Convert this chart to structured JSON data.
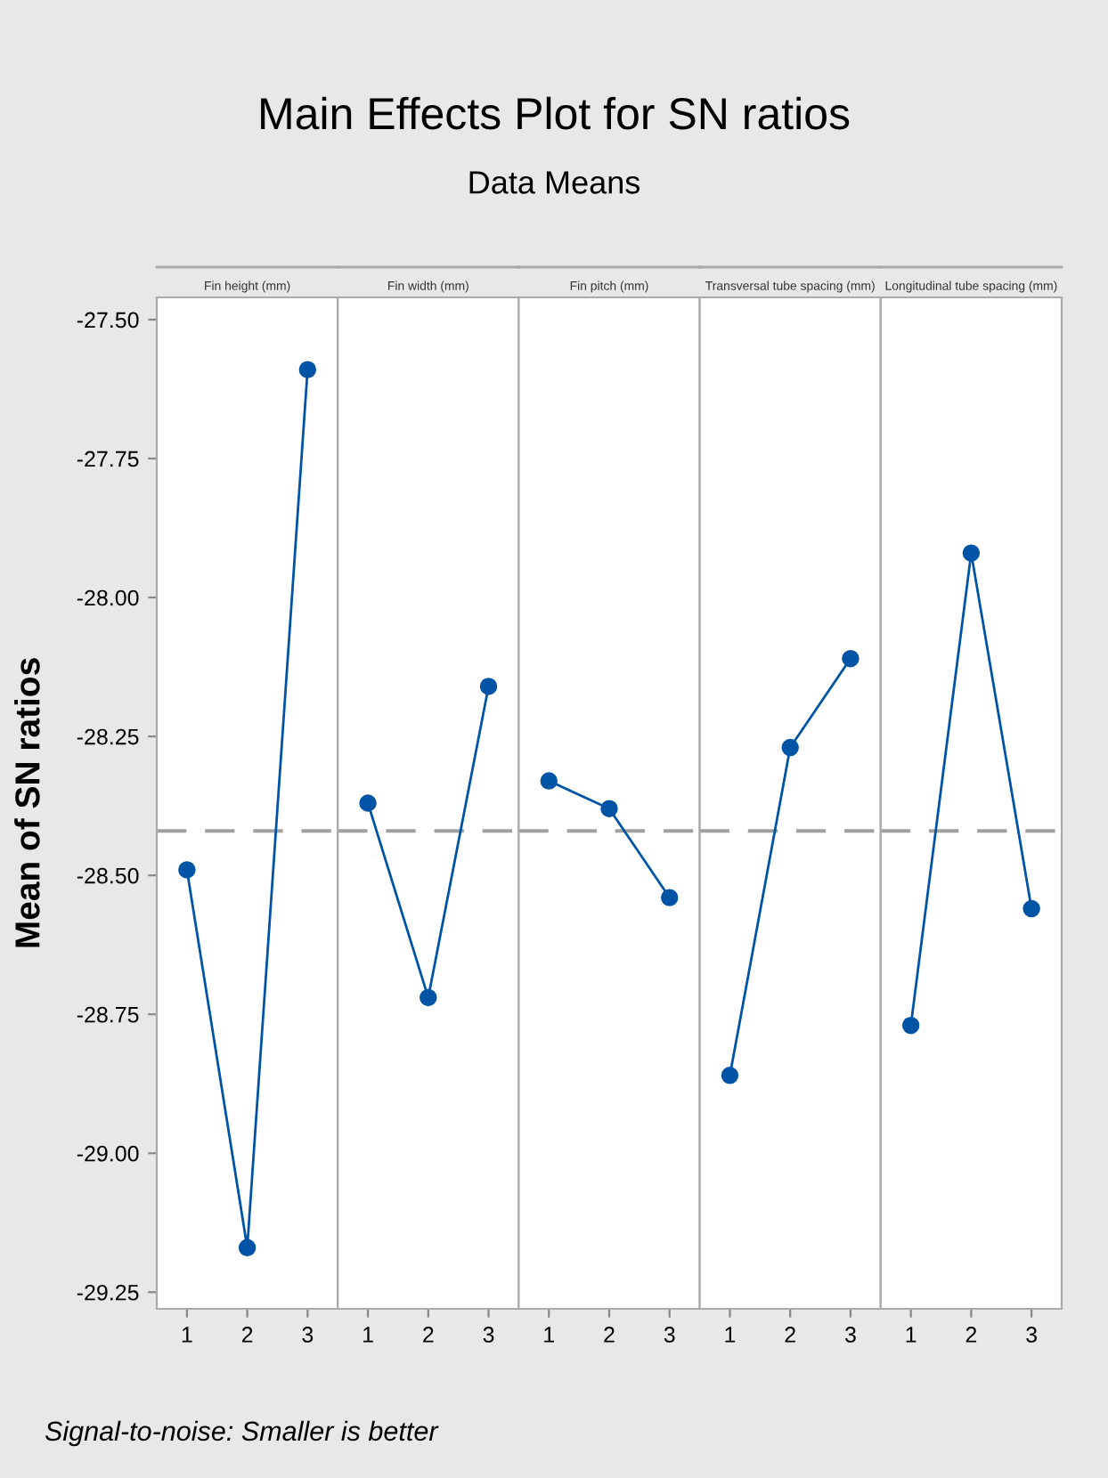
{
  "chart_data": [
    {
      "type": "line",
      "title": "Fin height (mm)",
      "ylabel": "Mean of SN ratios",
      "categories": [
        "1",
        "2",
        "3"
      ],
      "series": [
        {
          "color": "#0054a6",
          "values": [
            -28.49,
            -29.17,
            -27.59
          ]
        }
      ],
      "ylim": [
        -29.28,
        -27.46
      ],
      "yticks": [
        {
          "value": -27.5,
          "label": "-27.50"
        },
        {
          "value": -27.75,
          "label": "-27.75"
        },
        {
          "value": -28.0,
          "label": "-28.00"
        },
        {
          "value": -28.25,
          "label": "-28.25"
        },
        {
          "value": -28.5,
          "label": "-28.50"
        },
        {
          "value": -28.75,
          "label": "-28.75"
        },
        {
          "value": -29.0,
          "label": "-29.00"
        },
        {
          "value": -29.25,
          "label": "-29.25"
        }
      ],
      "ref_lines": [
        {
          "axis": "y",
          "value": -28.42,
          "color": "#a0a0a0",
          "line_style": "dashed"
        }
      ],
      "marker": "circle",
      "grid": false,
      "legend": false,
      "annotations": [
        "Signal-to-noise: Smaller is better"
      ]
    },
    {
      "type": "line",
      "title": "Fin width (mm)",
      "categories": [
        "1",
        "2",
        "3"
      ],
      "series": [
        {
          "color": "#0054a6",
          "values": [
            -28.37,
            -28.72,
            -28.16
          ]
        }
      ],
      "ylim": [
        -29.28,
        -27.46
      ],
      "tick_labels": "x",
      "ref_lines": [
        {
          "axis": "y",
          "value": -28.42,
          "color": "#a0a0a0",
          "line_style": "dashed"
        }
      ],
      "marker": "circle",
      "grid": false,
      "legend": false
    },
    {
      "type": "line",
      "title": "Main Effects Plot for SN ratios",
      "subtitle": "Data Means",
      "annotations": [
        "Fin pitch (mm)"
      ],
      "categories": [
        "1",
        "2",
        "3"
      ],
      "series": [
        {
          "color": "#0054a6",
          "values": [
            -28.33,
            -28.38,
            -28.54
          ]
        }
      ],
      "ylim": [
        -29.28,
        -27.46
      ],
      "tick_labels": "x",
      "ref_lines": [
        {
          "axis": "y",
          "value": -28.42,
          "color": "#a0a0a0",
          "line_style": "dashed"
        }
      ],
      "marker": "circle",
      "grid": false,
      "legend": false
    },
    {
      "type": "line",
      "title": "Transversal tube spacing (mm)",
      "categories": [
        "1",
        "2",
        "3"
      ],
      "series": [
        {
          "color": "#0054a6",
          "values": [
            -28.86,
            -28.27,
            -28.11
          ]
        }
      ],
      "ylim": [
        -29.28,
        -27.46
      ],
      "tick_labels": "x",
      "ref_lines": [
        {
          "axis": "y",
          "value": -28.42,
          "color": "#a0a0a0",
          "line_style": "dashed"
        }
      ],
      "marker": "circle",
      "grid": false,
      "legend": false
    },
    {
      "type": "line",
      "title": "Longitudinal tube spacing (mm)",
      "categories": [
        "1",
        "2",
        "3"
      ],
      "series": [
        {
          "color": "#0054a6",
          "values": [
            -28.77,
            -27.92,
            -28.56
          ]
        }
      ],
      "ylim": [
        -29.28,
        -27.46
      ],
      "tick_labels": "x",
      "ref_lines": [
        {
          "axis": "y",
          "value": -28.42,
          "color": "#a0a0a0",
          "line_style": "dashed"
        }
      ],
      "marker": "circle",
      "grid": false,
      "legend": false
    }
  ]
}
